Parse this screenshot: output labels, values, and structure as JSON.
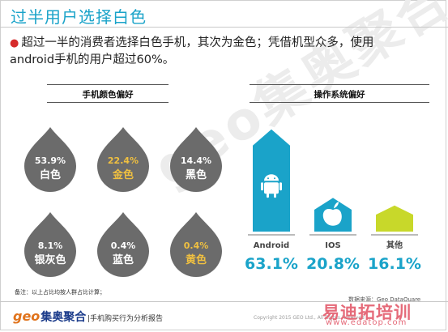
{
  "header": {
    "title": "过半用户选择白色",
    "headline_bullet": "●",
    "headline_line1": "超过一半的消费者选择白色手机，其次为金色；凭借机型众多，使用",
    "headline_line2": "android手机的用户超过60%。"
  },
  "colors": {
    "title": "#1aa3c9",
    "droplet_fill": "#6b6b6b",
    "white_label": "#ffffff",
    "gold_label": "#f0c040",
    "android": "#1aa3c9",
    "ios": "#1aa3c9",
    "other": "#c8d82a",
    "pct_text": "#1aa3c9"
  },
  "chart_data": [
    {
      "type": "pie",
      "title": "手机颜色偏好",
      "categories": [
        "白色",
        "金色",
        "黑色",
        "银灰色",
        "蓝色",
        "黄色"
      ],
      "values": [
        53.9,
        22.4,
        14.4,
        8.1,
        0.4,
        0.4
      ],
      "value_labels": [
        "53.9%",
        "22.4%",
        "14.4%",
        "8.1%",
        "0.4%",
        "0.4%"
      ],
      "label_colors": [
        "#ffffff",
        "#f0c040",
        "#ffffff",
        "#ffffff",
        "#ffffff",
        "#f0c040"
      ]
    },
    {
      "type": "bar",
      "title": "操作系统偏好",
      "categories": [
        "Android",
        "IOS",
        "其他"
      ],
      "values": [
        63.1,
        20.8,
        16.1
      ],
      "value_labels": [
        "63.1%",
        "20.8%",
        "16.1%"
      ],
      "bar_colors": [
        "#1aa3c9",
        "#1aa3c9",
        "#c8d82a"
      ],
      "icons": [
        "android-icon",
        "apple-icon",
        "none"
      ]
    }
  ],
  "footer": {
    "note": "备注：以上占比均按人群占比计算；",
    "source": "数据来源：Geo DataQuare",
    "logo_geo": "geo",
    "logo_name": "集奥聚合",
    "report": "|手机购买行为分析报告",
    "copyright": "Copyright 2015 GEO Ltd., All Rights Reserved",
    "site_logo": "易迪拓培训",
    "site_url": "www.edatop.com"
  },
  "watermark": "geo集奥聚合"
}
